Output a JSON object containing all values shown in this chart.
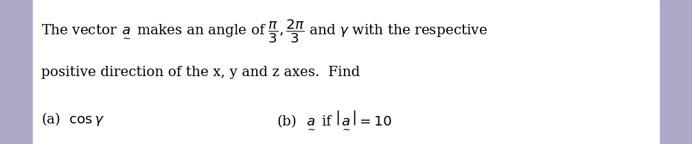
{
  "background_color": "#e8e8f0",
  "text_color": "#000000",
  "figsize": [
    10.08,
    2.1
  ],
  "dpi": 100
}
